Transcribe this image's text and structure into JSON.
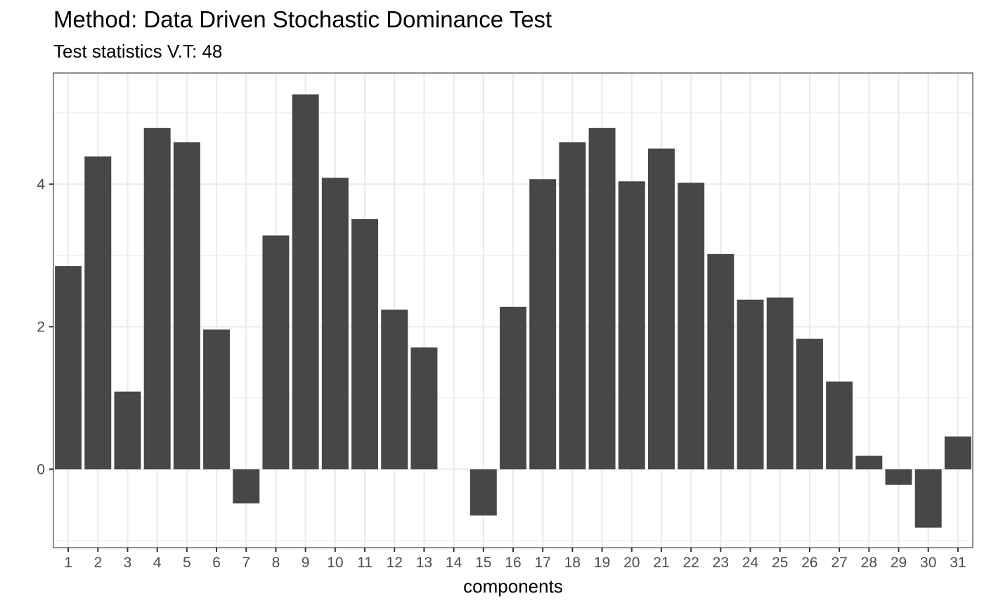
{
  "chart_data": {
    "type": "bar",
    "title": "Method: Data Driven Stochastic Dominance Test",
    "subtitle": "Test statistics V.T: 48",
    "xlabel": "components",
    "ylabel": "",
    "categories": [
      "1",
      "2",
      "3",
      "4",
      "5",
      "6",
      "7",
      "8",
      "9",
      "10",
      "11",
      "12",
      "13",
      "14",
      "15",
      "16",
      "17",
      "18",
      "19",
      "20",
      "21",
      "22",
      "23",
      "24",
      "25",
      "26",
      "27",
      "28",
      "29",
      "30",
      "31"
    ],
    "values": [
      2.85,
      4.39,
      1.09,
      4.79,
      4.59,
      1.96,
      -0.48,
      3.28,
      5.26,
      4.09,
      3.51,
      2.24,
      1.71,
      0,
      -0.65,
      2.28,
      4.07,
      4.59,
      4.79,
      4.04,
      4.5,
      4.02,
      3.02,
      2.38,
      2.41,
      1.83,
      1.23,
      0.19,
      -0.22,
      -0.82,
      0.46
    ],
    "ylim": [
      -1.1,
      5.56
    ],
    "yticks": [
      0,
      2,
      4
    ],
    "ytick_labels": [
      "0",
      "2",
      "4"
    ],
    "grid": true,
    "bar_color": "#474747",
    "grid_color": "#ebebeb",
    "panel_border_color": "#333333",
    "tick_label_color": "#4d4d4d"
  }
}
